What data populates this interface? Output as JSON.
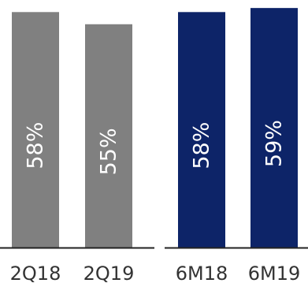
{
  "chart_data": [
    {
      "type": "bar",
      "categories": [
        "2Q18",
        "2Q19"
      ],
      "values": [
        58,
        55
      ],
      "data_labels": [
        "58%",
        "55%"
      ],
      "value_unit": "%",
      "ylim": [
        0,
        60
      ],
      "grid": false,
      "bar_color": "#808080",
      "label_color": "#ffffff",
      "axis_color": "#222222"
    },
    {
      "type": "bar",
      "categories": [
        "6M18",
        "6M19"
      ],
      "values": [
        58,
        59
      ],
      "data_labels": [
        "58%",
        "59%"
      ],
      "value_unit": "%",
      "ylim": [
        0,
        60
      ],
      "grid": false,
      "bar_color": "#0d2468",
      "label_color": "#ffffff",
      "axis_color": "#222222"
    }
  ]
}
